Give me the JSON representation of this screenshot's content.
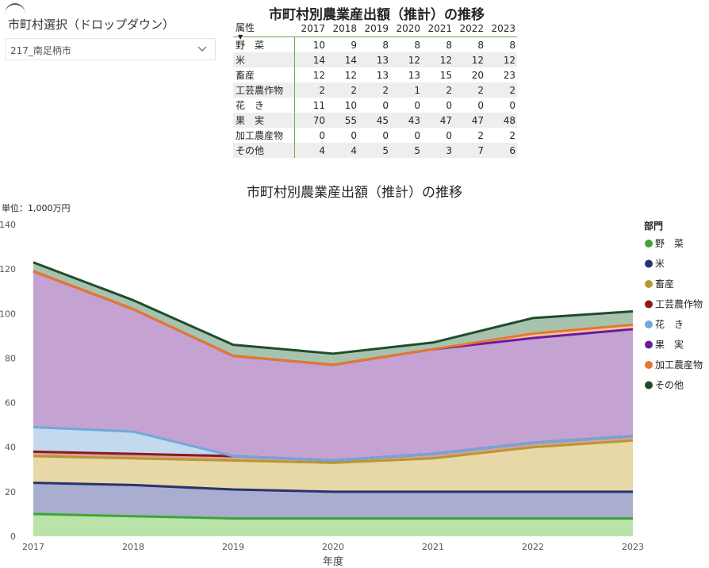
{
  "slicer": {
    "title": "市町村選択（ドロップダウン）",
    "value": "217_南足柄市"
  },
  "table": {
    "title": "市町村別農業産出額（推計）の推移",
    "header_label": "属性",
    "years": [
      "2017",
      "2018",
      "2019",
      "2020",
      "2021",
      "2022",
      "2023"
    ],
    "rows": [
      {
        "label": "野　菜",
        "values": [
          10,
          9,
          8,
          8,
          8,
          8,
          8
        ]
      },
      {
        "label": "米",
        "values": [
          14,
          14,
          13,
          12,
          12,
          12,
          12
        ]
      },
      {
        "label": "畜産",
        "values": [
          12,
          12,
          13,
          13,
          15,
          20,
          23
        ]
      },
      {
        "label": "工芸農作物",
        "values": [
          2,
          2,
          2,
          1,
          2,
          2,
          2
        ]
      },
      {
        "label": "花　き",
        "values": [
          11,
          10,
          0,
          0,
          0,
          0,
          0
        ]
      },
      {
        "label": "果　実",
        "values": [
          70,
          55,
          45,
          43,
          47,
          47,
          48
        ]
      },
      {
        "label": "加工農産物",
        "values": [
          0,
          0,
          0,
          0,
          0,
          2,
          2
        ]
      },
      {
        "label": "その他",
        "values": [
          4,
          4,
          5,
          5,
          3,
          7,
          6
        ]
      }
    ]
  },
  "chart_data": {
    "type": "area",
    "stacked": true,
    "title": "市町村別農業産出額（推計）の推移",
    "unit_label": "単位：1,000万円",
    "xlabel": "年度",
    "ylabel": "",
    "x": [
      "2017",
      "2018",
      "2019",
      "2020",
      "2021",
      "2022",
      "2023"
    ],
    "ylim": [
      0,
      140
    ],
    "yticks": [
      0,
      20,
      40,
      60,
      80,
      100,
      120,
      140
    ],
    "legend_title": "部門",
    "legend_position": "right",
    "series": [
      {
        "name": "野　菜",
        "line": "#3fa535",
        "fill": "#b9e3a8",
        "values": [
          10,
          9,
          8,
          8,
          8,
          8,
          8
        ]
      },
      {
        "name": "米",
        "line": "#27336e",
        "fill": "#a9aed0",
        "values": [
          14,
          14,
          13,
          12,
          12,
          12,
          12
        ]
      },
      {
        "name": "畜産",
        "line": "#b8972f",
        "fill": "#e8d7a7",
        "values": [
          12,
          12,
          13,
          13,
          15,
          20,
          23
        ]
      },
      {
        "name": "工芸農作物",
        "line": "#8b1a1a",
        "fill": "#d7a0a0",
        "values": [
          2,
          2,
          2,
          1,
          2,
          2,
          2
        ]
      },
      {
        "name": "花　き",
        "line": "#6fa8dc",
        "fill": "#c3d9ee",
        "values": [
          11,
          10,
          0,
          0,
          0,
          0,
          0
        ]
      },
      {
        "name": "果　実",
        "line": "#6a1b9a",
        "fill": "#c4a2d2",
        "values": [
          70,
          55,
          45,
          43,
          47,
          47,
          48
        ]
      },
      {
        "name": "加工農産物",
        "line": "#e8762c",
        "fill": "#f3c6a5",
        "values": [
          0,
          0,
          0,
          0,
          0,
          2,
          2
        ]
      },
      {
        "name": "その他",
        "line": "#1e4d2b",
        "fill": "#a8c3ad",
        "values": [
          4,
          4,
          5,
          5,
          3,
          7,
          6
        ]
      }
    ]
  }
}
